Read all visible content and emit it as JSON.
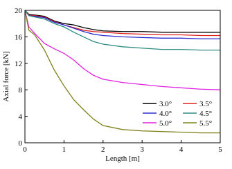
{
  "chart_data": {
    "type": "line",
    "x_label": "Length [m]",
    "y_label": "Axial force [kN]",
    "x": [
      0,
      0.1,
      0.25,
      0.5,
      0.75,
      1,
      1.25,
      1.5,
      1.75,
      2,
      2.5,
      3,
      3.5,
      4,
      4.5,
      5
    ],
    "xlim": [
      0,
      5
    ],
    "xticks": [
      0,
      1,
      2,
      3,
      4,
      5
    ],
    "ylim": [
      0,
      20
    ],
    "yticks": [
      0,
      4,
      8,
      12,
      16,
      20
    ],
    "legend": "lower right",
    "series": [
      {
        "name": "3.0°",
        "color": "#000000",
        "values": [
          20,
          19.4,
          19.3,
          19.1,
          18.4,
          18.0,
          17.8,
          17.4,
          17.1,
          16.9,
          16.8,
          16.8,
          16.7,
          16.7,
          16.7,
          16.7
        ]
      },
      {
        "name": "3.5°",
        "color": "#e0201c",
        "values": [
          20,
          19.3,
          19.2,
          19.0,
          18.3,
          17.8,
          17.4,
          17.0,
          16.8,
          16.7,
          16.5,
          16.4,
          16.3,
          16.3,
          16.2,
          16.2
        ]
      },
      {
        "name": "4.0°",
        "color": "#2a2ad0",
        "values": [
          20,
          19.2,
          19.1,
          18.9,
          18.2,
          17.8,
          17.3,
          16.8,
          16.4,
          16.2,
          16.0,
          15.9,
          15.8,
          15.8,
          15.7,
          15.7
        ]
      },
      {
        "name": "4.5°",
        "color": "#2a8a80",
        "values": [
          20,
          19.2,
          19.0,
          18.7,
          18.0,
          17.5,
          16.7,
          16.0,
          15.3,
          14.9,
          14.5,
          14.3,
          14.1,
          14.1,
          14.0,
          14.0
        ]
      },
      {
        "name": "5.0°",
        "color": "#e020e0",
        "values": [
          20,
          17.5,
          16.5,
          15.0,
          14.2,
          13.5,
          12.5,
          11.2,
          10.2,
          9.6,
          9.1,
          8.8,
          8.5,
          8.3,
          8.1,
          8.0
        ]
      },
      {
        "name": "5.5°",
        "color": "#80801a",
        "values": [
          20,
          17,
          16.3,
          14.0,
          11.0,
          8.6,
          6.5,
          5.0,
          3.6,
          2.6,
          2.0,
          1.8,
          1.7,
          1.6,
          1.5,
          1.5
        ]
      }
    ]
  }
}
